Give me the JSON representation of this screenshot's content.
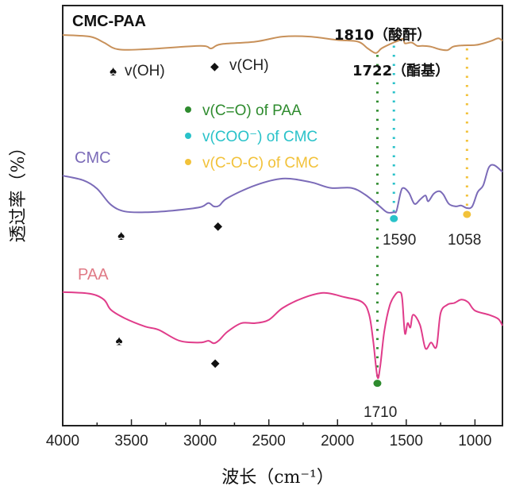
{
  "chart_data": {
    "type": "line",
    "title": "",
    "xlabel": "波长（cm⁻¹）",
    "ylabel": "透过率（%）",
    "xlim": [
      4000,
      800
    ],
    "ylim": [
      0,
      100
    ],
    "x_reversed": true,
    "grid": false,
    "xticks": [
      4000,
      3500,
      3000,
      2500,
      2000,
      1500,
      1000
    ],
    "xtick_labels": [
      "4000",
      "3500",
      "3000",
      "2500",
      "2000",
      "1500",
      "1000"
    ],
    "minor_xticks": [
      3750,
      3250,
      2750,
      2250,
      1750,
      1250
    ],
    "y_units_note": "arbitrary stacked offset (no y tick labels shown)",
    "series": [
      {
        "name": "CMC-PAA",
        "color": "#c8915a",
        "label_color": "#111111",
        "points": [
          [
            4000,
            93.0
          ],
          [
            3800,
            92.6
          ],
          [
            3700,
            91.2
          ],
          [
            3600,
            89.6
          ],
          [
            3400,
            89.6
          ],
          [
            3000,
            90.4
          ],
          [
            2920,
            89.8
          ],
          [
            2850,
            90.8
          ],
          [
            2600,
            91.4
          ],
          [
            2400,
            92.6
          ],
          [
            2200,
            92.6
          ],
          [
            2000,
            91.8
          ],
          [
            1850,
            91.4
          ],
          [
            1780,
            89.8
          ],
          [
            1722,
            88.7
          ],
          [
            1680,
            89.8
          ],
          [
            1620,
            90.8
          ],
          [
            1560,
            91.6
          ],
          [
            1520,
            92.1
          ],
          [
            1510,
            91.0
          ],
          [
            1460,
            91.2
          ],
          [
            1420,
            90.4
          ],
          [
            1380,
            90.4
          ],
          [
            1320,
            90.2
          ],
          [
            1260,
            89.6
          ],
          [
            1200,
            89.4
          ],
          [
            1160,
            90.2
          ],
          [
            1100,
            90.5
          ],
          [
            1000,
            90.6
          ],
          [
            950,
            90.9
          ],
          [
            880,
            91.6
          ],
          [
            830,
            92.2
          ],
          [
            800,
            91.6
          ]
        ]
      },
      {
        "name": "CMC",
        "color": "#7b6bb8",
        "label_color": "#7b6bb8",
        "points": [
          [
            4000,
            59.5
          ],
          [
            3850,
            58.4
          ],
          [
            3750,
            56.4
          ],
          [
            3650,
            52.6
          ],
          [
            3550,
            51.0
          ],
          [
            3400,
            50.8
          ],
          [
            3200,
            51.2
          ],
          [
            3000,
            52.0
          ],
          [
            2940,
            53.0
          ],
          [
            2900,
            52.2
          ],
          [
            2860,
            52.4
          ],
          [
            2800,
            54.2
          ],
          [
            2600,
            57.2
          ],
          [
            2400,
            58.8
          ],
          [
            2200,
            58.0
          ],
          [
            2050,
            56.6
          ],
          [
            1900,
            56.6
          ],
          [
            1800,
            55.0
          ],
          [
            1700,
            52.4
          ],
          [
            1640,
            50.8
          ],
          [
            1590,
            50.8
          ],
          [
            1570,
            51.2
          ],
          [
            1540,
            55.6
          ],
          [
            1520,
            56.6
          ],
          [
            1480,
            55.4
          ],
          [
            1440,
            52.8
          ],
          [
            1400,
            53.8
          ],
          [
            1360,
            54.8
          ],
          [
            1340,
            53.4
          ],
          [
            1300,
            55.2
          ],
          [
            1260,
            55.8
          ],
          [
            1230,
            55.0
          ],
          [
            1190,
            52.8
          ],
          [
            1140,
            52.2
          ],
          [
            1100,
            52.4
          ],
          [
            1058,
            51.8
          ],
          [
            1020,
            52.2
          ],
          [
            980,
            55.6
          ],
          [
            940,
            57.2
          ],
          [
            900,
            61.4
          ],
          [
            860,
            62.0
          ],
          [
            800,
            60.4
          ]
        ]
      },
      {
        "name": "PAA",
        "color": "#e03c8a",
        "label_color": "#e07a86",
        "points": [
          [
            4000,
            31.8
          ],
          [
            3800,
            31.4
          ],
          [
            3700,
            30.0
          ],
          [
            3650,
            27.6
          ],
          [
            3550,
            25.6
          ],
          [
            3400,
            23.6
          ],
          [
            3300,
            22.8
          ],
          [
            3150,
            20.2
          ],
          [
            3000,
            19.8
          ],
          [
            2940,
            20.2
          ],
          [
            2900,
            19.6
          ],
          [
            2860,
            20.4
          ],
          [
            2800,
            22.4
          ],
          [
            2700,
            24.4
          ],
          [
            2600,
            24.4
          ],
          [
            2500,
            25.2
          ],
          [
            2400,
            28.0
          ],
          [
            2250,
            30.4
          ],
          [
            2100,
            31.6
          ],
          [
            1950,
            30.6
          ],
          [
            1820,
            29.4
          ],
          [
            1770,
            26.4
          ],
          [
            1740,
            20.0
          ],
          [
            1710,
            11.6
          ],
          [
            1690,
            14.0
          ],
          [
            1660,
            22.4
          ],
          [
            1620,
            28.6
          ],
          [
            1580,
            31.2
          ],
          [
            1550,
            31.8
          ],
          [
            1530,
            30.4
          ],
          [
            1510,
            22.0
          ],
          [
            1490,
            24.4
          ],
          [
            1470,
            23.4
          ],
          [
            1450,
            26.4
          ],
          [
            1400,
            24.0
          ],
          [
            1360,
            18.4
          ],
          [
            1320,
            19.8
          ],
          [
            1280,
            18.8
          ],
          [
            1250,
            26.8
          ],
          [
            1200,
            28.8
          ],
          [
            1150,
            29.2
          ],
          [
            1100,
            30.0
          ],
          [
            1050,
            29.4
          ],
          [
            1000,
            27.4
          ],
          [
            900,
            26.4
          ],
          [
            830,
            25.4
          ],
          [
            800,
            23.8
          ]
        ]
      }
    ],
    "vertical_markers": [
      {
        "wavenumber": 1710,
        "color": "#2e8b2e",
        "label": "1710",
        "dot_on": "PAA"
      },
      {
        "wavenumber": 1590,
        "color": "#29c2c9",
        "label": "1590",
        "dot_on": "CMC"
      },
      {
        "wavenumber": 1058,
        "color": "#f2c23a",
        "label": "1058",
        "dot_on": "CMC"
      }
    ],
    "legend": {
      "position": "upper-center",
      "entries": [
        {
          "label": "v(C=O) of PAA",
          "color": "#2e8b2e"
        },
        {
          "label": "v(COO⁻) of CMC",
          "color": "#29c2c9"
        },
        {
          "label": "v(C-O-C) of CMC",
          "color": "#f2c23a"
        }
      ]
    },
    "annotations": [
      {
        "text": "1810（酸酐）",
        "wavenumber": 1810,
        "series": "CMC-PAA",
        "position": "above"
      },
      {
        "text": "1722（酯基）",
        "wavenumber": 1722,
        "series": "CMC-PAA",
        "position": "below"
      }
    ],
    "symbol_key": [
      {
        "symbol": "♠",
        "label": "v(OH)"
      },
      {
        "symbol": "◆",
        "label": "v(CH)"
      }
    ],
    "symbol_markers": [
      {
        "symbol": "♠",
        "wavenumber": 3575,
        "series": "CMC"
      },
      {
        "symbol": "◆",
        "wavenumber": 2870,
        "series": "CMC"
      },
      {
        "symbol": "♠",
        "wavenumber": 3590,
        "series": "PAA"
      },
      {
        "symbol": "◆",
        "wavenumber": 2890,
        "series": "PAA"
      }
    ]
  },
  "labels": {
    "series_cmc_paa": "CMC-PAA",
    "series_cmc": "CMC",
    "series_paa": "PAA",
    "anno_1810": "1810（酸酐）",
    "anno_1722": "1722（酯基）",
    "key_oh": "v(OH)",
    "key_ch": "v(CH)",
    "legend_0": "v(C=O) of PAA",
    "legend_1": "v(COO⁻) of CMC",
    "legend_2": "v(C-O-C) of CMC",
    "peak_1590": "1590",
    "peak_1058": "1058",
    "peak_1710": "1710",
    "xlabel": "波长（cm⁻¹）",
    "ylabel": "透过率（%）",
    "sym_spade": "♠",
    "sym_diamond": "◆"
  }
}
